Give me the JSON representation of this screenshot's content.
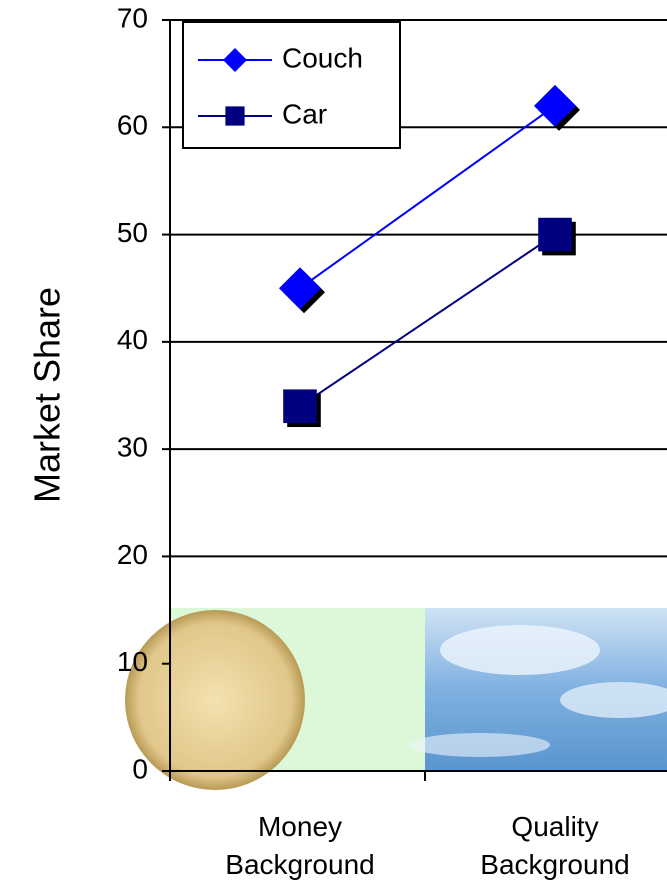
{
  "chart_data": {
    "type": "line",
    "y_label": "Market Share",
    "categories": [
      "Money Background",
      "Quality Background"
    ],
    "series": [
      {
        "name": "Couch",
        "color": "#0000ff",
        "marker": "diamond",
        "values": [
          45,
          62
        ]
      },
      {
        "name": "Car",
        "color": "#000080",
        "marker": "square",
        "values": [
          34,
          50
        ]
      }
    ],
    "ylim": [
      0,
      70
    ],
    "yticks": [
      0,
      10,
      20,
      30,
      40,
      50,
      60,
      70
    ],
    "grid": true,
    "legend": "top-left"
  }
}
